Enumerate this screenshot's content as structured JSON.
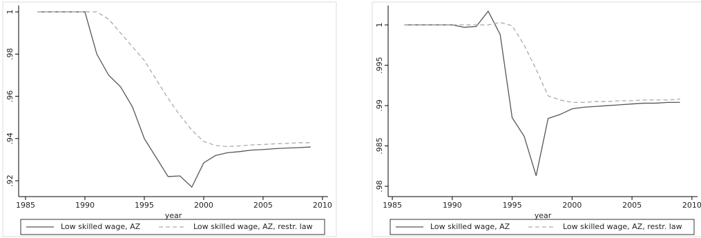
{
  "chart_data": [
    {
      "type": "line",
      "xlabel": "year",
      "x": [
        1986,
        1987,
        1988,
        1989,
        1990,
        1991,
        1992,
        1993,
        1994,
        1995,
        1996,
        1997,
        1998,
        1999,
        2000,
        2001,
        2002,
        2003,
        2004,
        2005,
        2006,
        2007,
        2008,
        2009
      ],
      "xlim": [
        1984.42,
        2010.47
      ],
      "xticks": [
        1985,
        1990,
        1995,
        2000,
        2005,
        2010
      ],
      "ylim": [
        0.9125,
        1.003
      ],
      "yticks": [
        {
          "value": 0.92,
          "label": ".92"
        },
        {
          "value": 0.94,
          "label": ".94"
        },
        {
          "value": 0.96,
          "label": ".96"
        },
        {
          "value": 0.98,
          "label": ".98"
        },
        1
      ],
      "series": [
        {
          "name": "Low skilled wage, AZ",
          "color": "#555555",
          "style": "solid",
          "values": [
            1,
            1,
            1,
            1,
            1,
            0.98,
            0.97,
            0.9645,
            0.955,
            0.94,
            0.931,
            0.922,
            0.9223,
            0.917,
            0.9285,
            0.932,
            0.9333,
            0.9338,
            0.9345,
            0.9348,
            0.9352,
            0.9355,
            0.9357,
            0.936
          ]
        },
        {
          "name": "Low skilled wage, AZ, restr. law",
          "color": "#aaaaaa",
          "style": "dashed",
          "values": [
            1,
            1,
            1,
            1,
            1,
            1,
            0.9965,
            0.99,
            0.9835,
            0.977,
            0.968,
            0.959,
            0.951,
            0.944,
            0.9386,
            0.9367,
            0.9362,
            0.9365,
            0.937,
            0.9372,
            0.9375,
            0.9377,
            0.938,
            0.938
          ]
        }
      ]
    },
    {
      "type": "line",
      "xlabel": "year",
      "x": [
        1986,
        1987,
        1988,
        1989,
        1990,
        1991,
        1992,
        1993,
        1994,
        1995,
        1996,
        1997,
        1998,
        1999,
        2000,
        2001,
        2002,
        2003,
        2004,
        2005,
        2006,
        2007,
        2008,
        2009
      ],
      "xlim": [
        1984.65,
        2010.47
      ],
      "xticks": [
        1985,
        1990,
        1995,
        2000,
        2005,
        2010
      ],
      "ylim": [
        0.97872,
        1.0024
      ],
      "yticks": [
        {
          "value": 0.98,
          "label": ".98"
        },
        {
          "value": 0.985,
          "label": ".985"
        },
        {
          "value": 0.99,
          "label": ".99"
        },
        {
          "value": 0.995,
          "label": ".995"
        },
        1
      ],
      "series": [
        {
          "name": "Low skilled wage, AZ",
          "color": "#555555",
          "style": "solid",
          "values": [
            1,
            1,
            1,
            1,
            1,
            0.9997,
            0.9998,
            1.0017,
            0.9988,
            0.9885,
            0.9862,
            0.9813,
            0.9884,
            0.9889,
            0.9896,
            0.9898,
            0.9899,
            0.99,
            0.9901,
            0.9902,
            0.9903,
            0.9903,
            0.9904,
            0.9904
          ]
        },
        {
          "name": "Low skilled wage, AZ, restr. law",
          "color": "#aaaaaa",
          "style": "dashed",
          "values": [
            1,
            1,
            1,
            1,
            1,
            1,
            1,
            1,
            1.0003,
            0.9999,
            0.9975,
            0.9945,
            0.9912,
            0.9907,
            0.9904,
            0.9904,
            0.9905,
            0.9905,
            0.9906,
            0.9906,
            0.9907,
            0.9907,
            0.9907,
            0.9908
          ]
        }
      ]
    }
  ]
}
